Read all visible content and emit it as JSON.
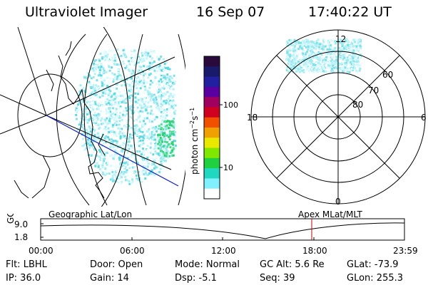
{
  "header": {
    "title": "Ultraviolet Imager",
    "date": "16 Sep 07",
    "time": "17:40:22 UT"
  },
  "colorbar": {
    "unit_label": "photon cm",
    "unit_exp1": "−2",
    "unit_mid": "s",
    "unit_exp2": "−1",
    "ticks": [
      "100",
      "10"
    ],
    "tick_values": [
      100,
      10
    ],
    "colors": [
      "#2a0a3c",
      "#1a1a6a",
      "#2020a0",
      "#5a00a0",
      "#a00060",
      "#d00020",
      "#f05000",
      "#f0a000",
      "#e8e800",
      "#80e800",
      "#20d040",
      "#20d8c0",
      "#80f0ff",
      "#ffffff"
    ]
  },
  "left_panel": {
    "label": "Geographic Lat/Lon"
  },
  "right_panel": {
    "label": "Apex  MLat/MLT",
    "mlt_labels": [
      "12",
      "18",
      "6",
      "0"
    ],
    "mlat_labels": [
      "60",
      "70",
      "80"
    ]
  },
  "altitude_plot": {
    "ylabel": "GC Alt",
    "yticks": [
      "9.0",
      "1.8"
    ],
    "xticks": [
      "00:00",
      "06:00",
      "12:00",
      "18:00",
      "23:59"
    ],
    "marker_time": "17:40",
    "marker_color": "#c00000"
  },
  "info": {
    "flt": "Flt: LBHL",
    "ip": "IP: 36.0",
    "door": "Door: Open",
    "gain": "Gain: 14",
    "mode": "Mode: Normal",
    "dsp": "Dsp:    -5.1",
    "gcalt": "GC Alt: 5.6 Re",
    "seq": "Seq: 39",
    "glat": "GLat: -73.9",
    "glon": "GLon: 255.3"
  }
}
